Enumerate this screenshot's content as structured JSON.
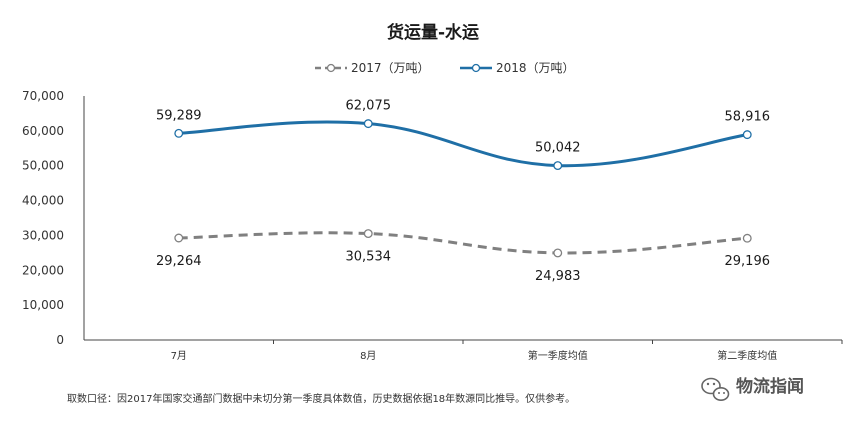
{
  "chart_data": {
    "type": "line",
    "title": "货运量-水运",
    "categories": [
      "7月",
      "8月",
      "第一季度均值",
      "第二季度均值"
    ],
    "series": [
      {
        "name": "2017（万吨）",
        "values": [
          29264,
          30534,
          24983,
          29196
        ],
        "color": "#808080",
        "dashed": true,
        "label_position": "below"
      },
      {
        "name": "2018（万吨）",
        "values": [
          59289,
          62075,
          50042,
          58916
        ],
        "color": "#1f6fa6",
        "dashed": false,
        "label_position": "above"
      }
    ],
    "ylim": [
      0,
      70000
    ],
    "y_ticks": [
      "0",
      "10,000",
      "20,000",
      "30,000",
      "40,000",
      "50,000",
      "60,000",
      "70,000"
    ],
    "data_labels": [
      [
        "29,264",
        "30,534",
        "24,983",
        "29,196"
      ],
      [
        "59,289",
        "62,075",
        "50,042",
        "58,916"
      ]
    ],
    "legend_position": "top-center",
    "grid": false
  },
  "footnote": "取数口径：因2017年国家交通部门数据中未切分第一季度具体数值，历史数据依据18年数源同比推导。仅供参考。",
  "watermark": {
    "text": "物流指闻",
    "icon": "wechat-icon"
  }
}
